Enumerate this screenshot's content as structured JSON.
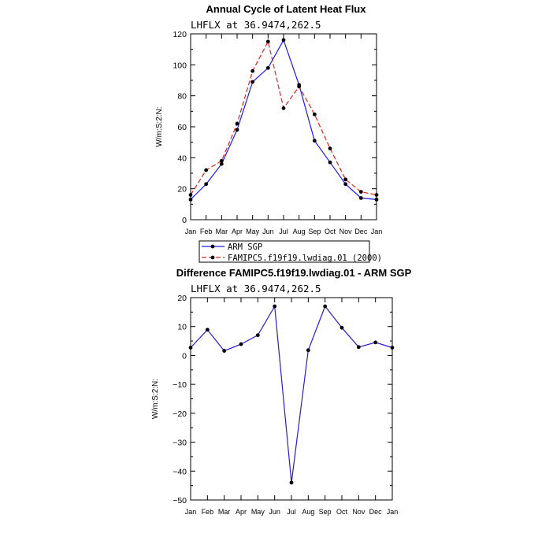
{
  "colors": {
    "obs": "#1a1aff",
    "model": "#e8201c",
    "diff": "#2b1ad6",
    "marker": "#000000",
    "axis": "#000000"
  },
  "chart_data": [
    {
      "type": "line",
      "title": "Annual Cycle of Latent Heat Flux",
      "subtitle": "LHFLX at 36.9474,262.5",
      "ylabel": "W/m:S:2:N:",
      "xlabel": "",
      "categories": [
        "Jan",
        "Feb",
        "Mar",
        "Apr",
        "May",
        "Jun",
        "Jul",
        "Aug",
        "Sep",
        "Oct",
        "Nov",
        "Dec",
        "Jan"
      ],
      "ylim": [
        0,
        120
      ],
      "yticks": [
        0,
        20,
        40,
        60,
        80,
        100,
        120
      ],
      "series": [
        {
          "name": "ARM SGP",
          "style": "solid",
          "values": [
            13,
            23,
            36,
            58,
            89,
            98,
            116,
            87,
            51,
            37,
            23,
            14,
            13
          ]
        },
        {
          "name": "FAMIPC5.f19f19.lwdiag.01 (2000)",
          "style": "dashed",
          "values": [
            16,
            32,
            38,
            62,
            96,
            115,
            72,
            86,
            68,
            46,
            26,
            18,
            16
          ]
        }
      ],
      "legend": "bottom-left"
    },
    {
      "type": "line",
      "title": "Difference FAMIPC5.f19f19.lwdiag.01 - ARM SGP",
      "subtitle": "LHFLX at 36.9474,262.5",
      "ylabel": "W/m:S:2:N:",
      "xlabel": "",
      "categories": [
        "Jan",
        "Feb",
        "Mar",
        "Apr",
        "May",
        "Jun",
        "Jul",
        "Aug",
        "Sep",
        "Oct",
        "Nov",
        "Dec",
        "Jan"
      ],
      "ylim": [
        -50,
        20
      ],
      "yticks": [
        -50,
        -40,
        -30,
        -20,
        -10,
        0,
        10,
        20
      ],
      "series": [
        {
          "style": "solid",
          "values": [
            2.7,
            8.9,
            1.6,
            3.9,
            7.0,
            17.0,
            -44.0,
            1.8,
            17.0,
            9.6,
            2.9,
            4.5,
            2.7
          ]
        }
      ]
    }
  ]
}
